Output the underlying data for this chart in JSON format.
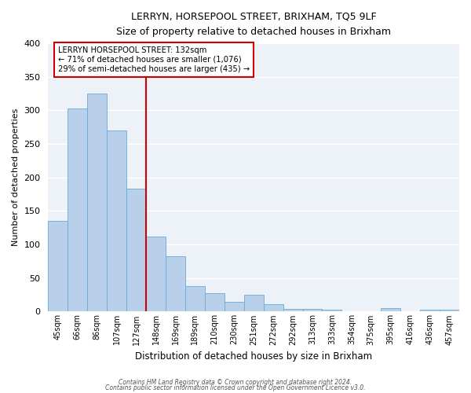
{
  "title": "LERRYN, HORSEPOOL STREET, BRIXHAM, TQ5 9LF",
  "subtitle": "Size of property relative to detached houses in Brixham",
  "xlabel": "Distribution of detached houses by size in Brixham",
  "ylabel": "Number of detached properties",
  "bar_labels": [
    "45sqm",
    "66sqm",
    "86sqm",
    "107sqm",
    "127sqm",
    "148sqm",
    "169sqm",
    "189sqm",
    "210sqm",
    "230sqm",
    "251sqm",
    "272sqm",
    "292sqm",
    "313sqm",
    "333sqm",
    "354sqm",
    "375sqm",
    "395sqm",
    "416sqm",
    "436sqm",
    "457sqm"
  ],
  "bar_heights": [
    135,
    303,
    325,
    270,
    183,
    112,
    83,
    38,
    27,
    15,
    25,
    11,
    4,
    4,
    3,
    0,
    0,
    5,
    0,
    3,
    3
  ],
  "bar_color": "#b8d0ea",
  "bar_edgecolor": "#6aaad4",
  "bar_width": 1.0,
  "vline_x": 5.0,
  "vline_color": "#cc0000",
  "annotation_title": "LERRYN HORSEPOOL STREET: 132sqm",
  "annotation_line1": "← 71% of detached houses are smaller (1,076)",
  "annotation_line2": "29% of semi-detached houses are larger (435) →",
  "annotation_box_color": "#cc0000",
  "ylim": [
    0,
    400
  ],
  "yticks": [
    0,
    50,
    100,
    150,
    200,
    250,
    300,
    350,
    400
  ],
  "footer1": "Contains HM Land Registry data © Crown copyright and database right 2024.",
  "footer2": "Contains public sector information licensed under the Open Government Licence v3.0.",
  "background_color": "#edf2f9"
}
